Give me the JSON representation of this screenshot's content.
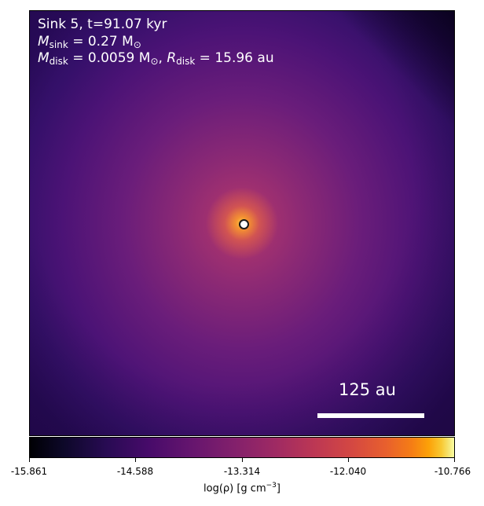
{
  "figure": {
    "info": {
      "line1": "Sink 5, t=91.07 kyr",
      "m_sink_symbol": "M",
      "m_sink_sub": "sink",
      "m_sink_value": " = 0.27 M",
      "m_sink_unit_sub": "⊙",
      "m_disk_symbol": "M",
      "m_disk_sub": "disk",
      "m_disk_value": " = 0.0059 M",
      "m_disk_unit_sub": "⊙",
      "separator": ", ",
      "r_disk_symbol": "R",
      "r_disk_sub": "disk",
      "r_disk_value": " = 15.96 au"
    },
    "scalebar_label": "125 au",
    "colorbar": {
      "ticks": [
        "-15.861",
        "-14.588",
        "-13.314",
        "-12.040",
        "-10.766"
      ],
      "label_prefix": "log(ρ) [g cm",
      "label_exp": "−3",
      "label_suffix": "]"
    }
  }
}
